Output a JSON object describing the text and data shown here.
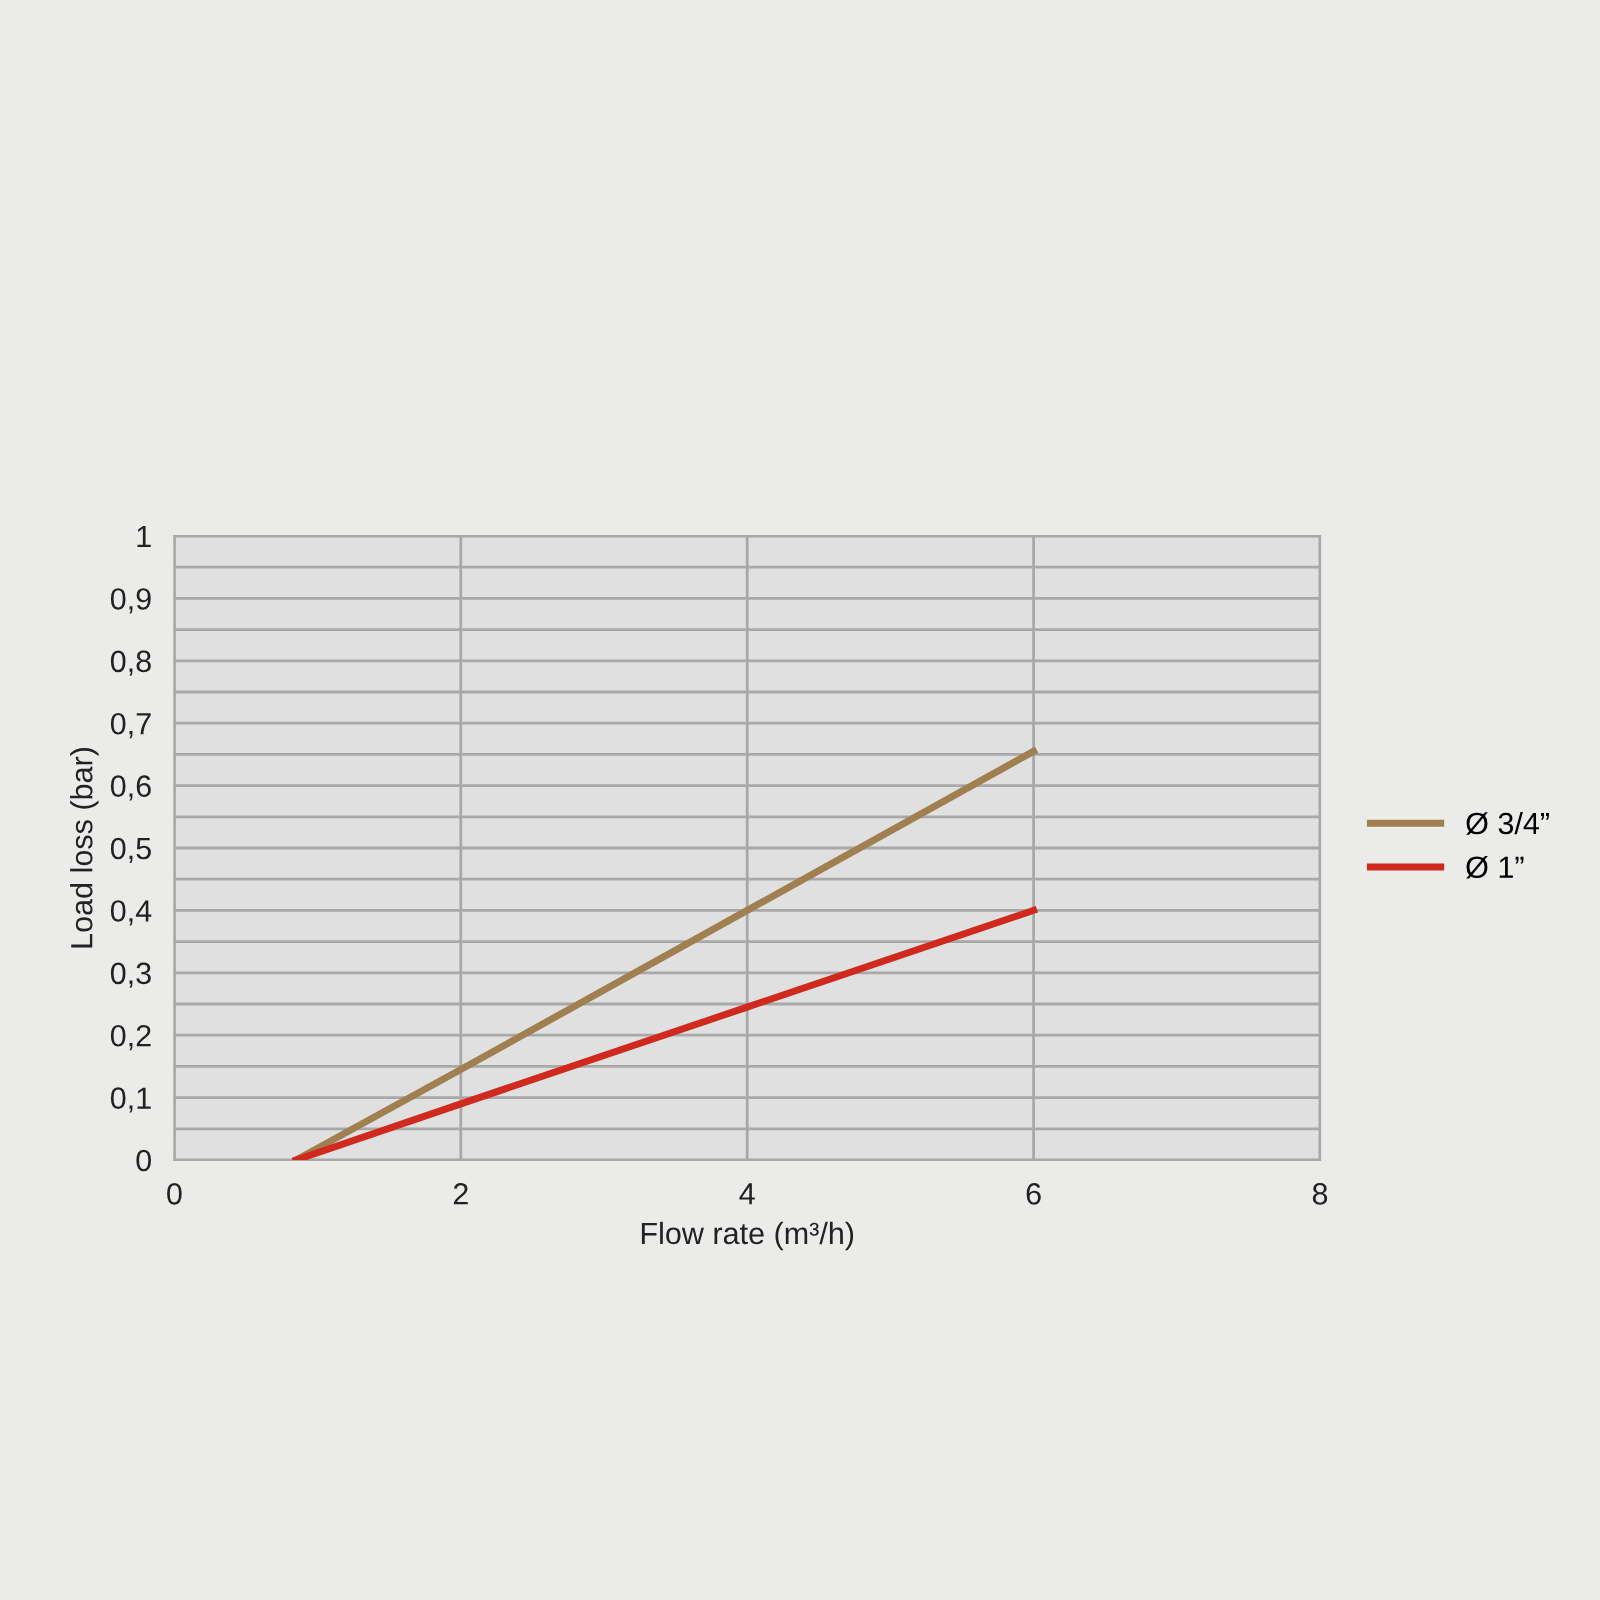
{
  "chart_data": {
    "type": "line",
    "xlabel": "Flow rate (m³/h)",
    "ylabel": "Load loss (bar)",
    "series": [
      {
        "name": "Ø 3/4”",
        "color": "#a08050",
        "x": [
          0.85,
          2,
          4,
          6
        ],
        "values": [
          0,
          0.145,
          0.4,
          0.655
        ]
      },
      {
        "name": "Ø 1”",
        "color": "#d02a1e",
        "x": [
          0.85,
          2,
          4,
          6
        ],
        "values": [
          0,
          0.09,
          0.245,
          0.4
        ]
      }
    ],
    "xlim": [
      0,
      8
    ],
    "xticks": [
      0,
      2,
      4,
      6,
      8
    ],
    "ylim": [
      0,
      1
    ],
    "yticks": [
      0,
      {
        "value": 0.05,
        "label": null
      },
      {
        "value": 0.1,
        "label": "0,1"
      },
      {
        "value": 0.15,
        "label": null
      },
      {
        "value": 0.2,
        "label": "0,2"
      },
      {
        "value": 0.25,
        "label": null
      },
      {
        "value": 0.3,
        "label": "0,3"
      },
      {
        "value": 0.35,
        "label": null
      },
      {
        "value": 0.4,
        "label": "0,4"
      },
      {
        "value": 0.45,
        "label": null
      },
      {
        "value": 0.5,
        "label": "0,5"
      },
      {
        "value": 0.55,
        "label": null
      },
      {
        "value": 0.6,
        "label": "0,6"
      },
      {
        "value": 0.65,
        "label": null
      },
      {
        "value": 0.7,
        "label": "0,7"
      },
      {
        "value": 0.75,
        "label": null
      },
      {
        "value": 0.8,
        "label": "0,8"
      },
      {
        "value": 0.85,
        "label": null
      },
      {
        "value": 0.9,
        "label": "0,9"
      },
      {
        "value": 0.95,
        "label": null
      },
      1
    ],
    "grid": true,
    "legend": "right",
    "marker": "none",
    "line_style": "solid"
  }
}
